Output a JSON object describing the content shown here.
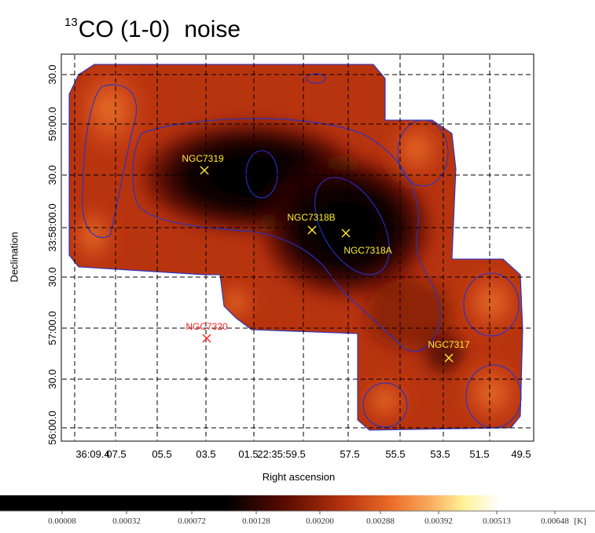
{
  "title": {
    "superscript": "13",
    "species": "CO (1-0)",
    "quantity": "noise"
  },
  "chart_data": {
    "type": "heatmap",
    "title": "13CO (1-0) noise",
    "xlabel": "Right ascension",
    "ylabel": "Declination",
    "x_ticks": [
      "36:09.4",
      "07.5",
      "05.5",
      "03.5",
      "01.5",
      "22:35:59.5",
      "57.5",
      "55.5",
      "53.5",
      "51.5",
      "49.5"
    ],
    "y_ticks": [
      "56:00.0",
      "30.0",
      "57:00.0",
      "30.0",
      "33:58:00.0",
      "30.0",
      "59:00.0",
      "30.0"
    ],
    "grid": true,
    "colormap": "heat (black-red-orange-yellow-white)",
    "colorbar": {
      "unit": "[K]",
      "ticks": [
        8e-05,
        0.00032,
        0.00072,
        0.00128,
        0.002,
        0.00288,
        0.00392,
        0.00513,
        0.00648
      ],
      "tick_labels": [
        "0.00008",
        "0.00032",
        "0.00072",
        "0.00128",
        "0.00200",
        "0.00288",
        "0.00392",
        "0.00513",
        "0.00648"
      ]
    },
    "sources": [
      {
        "name": "NGC7319",
        "color": "#ffee33"
      },
      {
        "name": "NGC7318B",
        "color": "#ffee33"
      },
      {
        "name": "NGC7318A",
        "color": "#ffee33"
      },
      {
        "name": "NGC7317",
        "color": "#ffee33"
      },
      {
        "name": "NGC7320",
        "color": "#ff2222"
      }
    ],
    "contour_color": "#2233cc"
  }
}
